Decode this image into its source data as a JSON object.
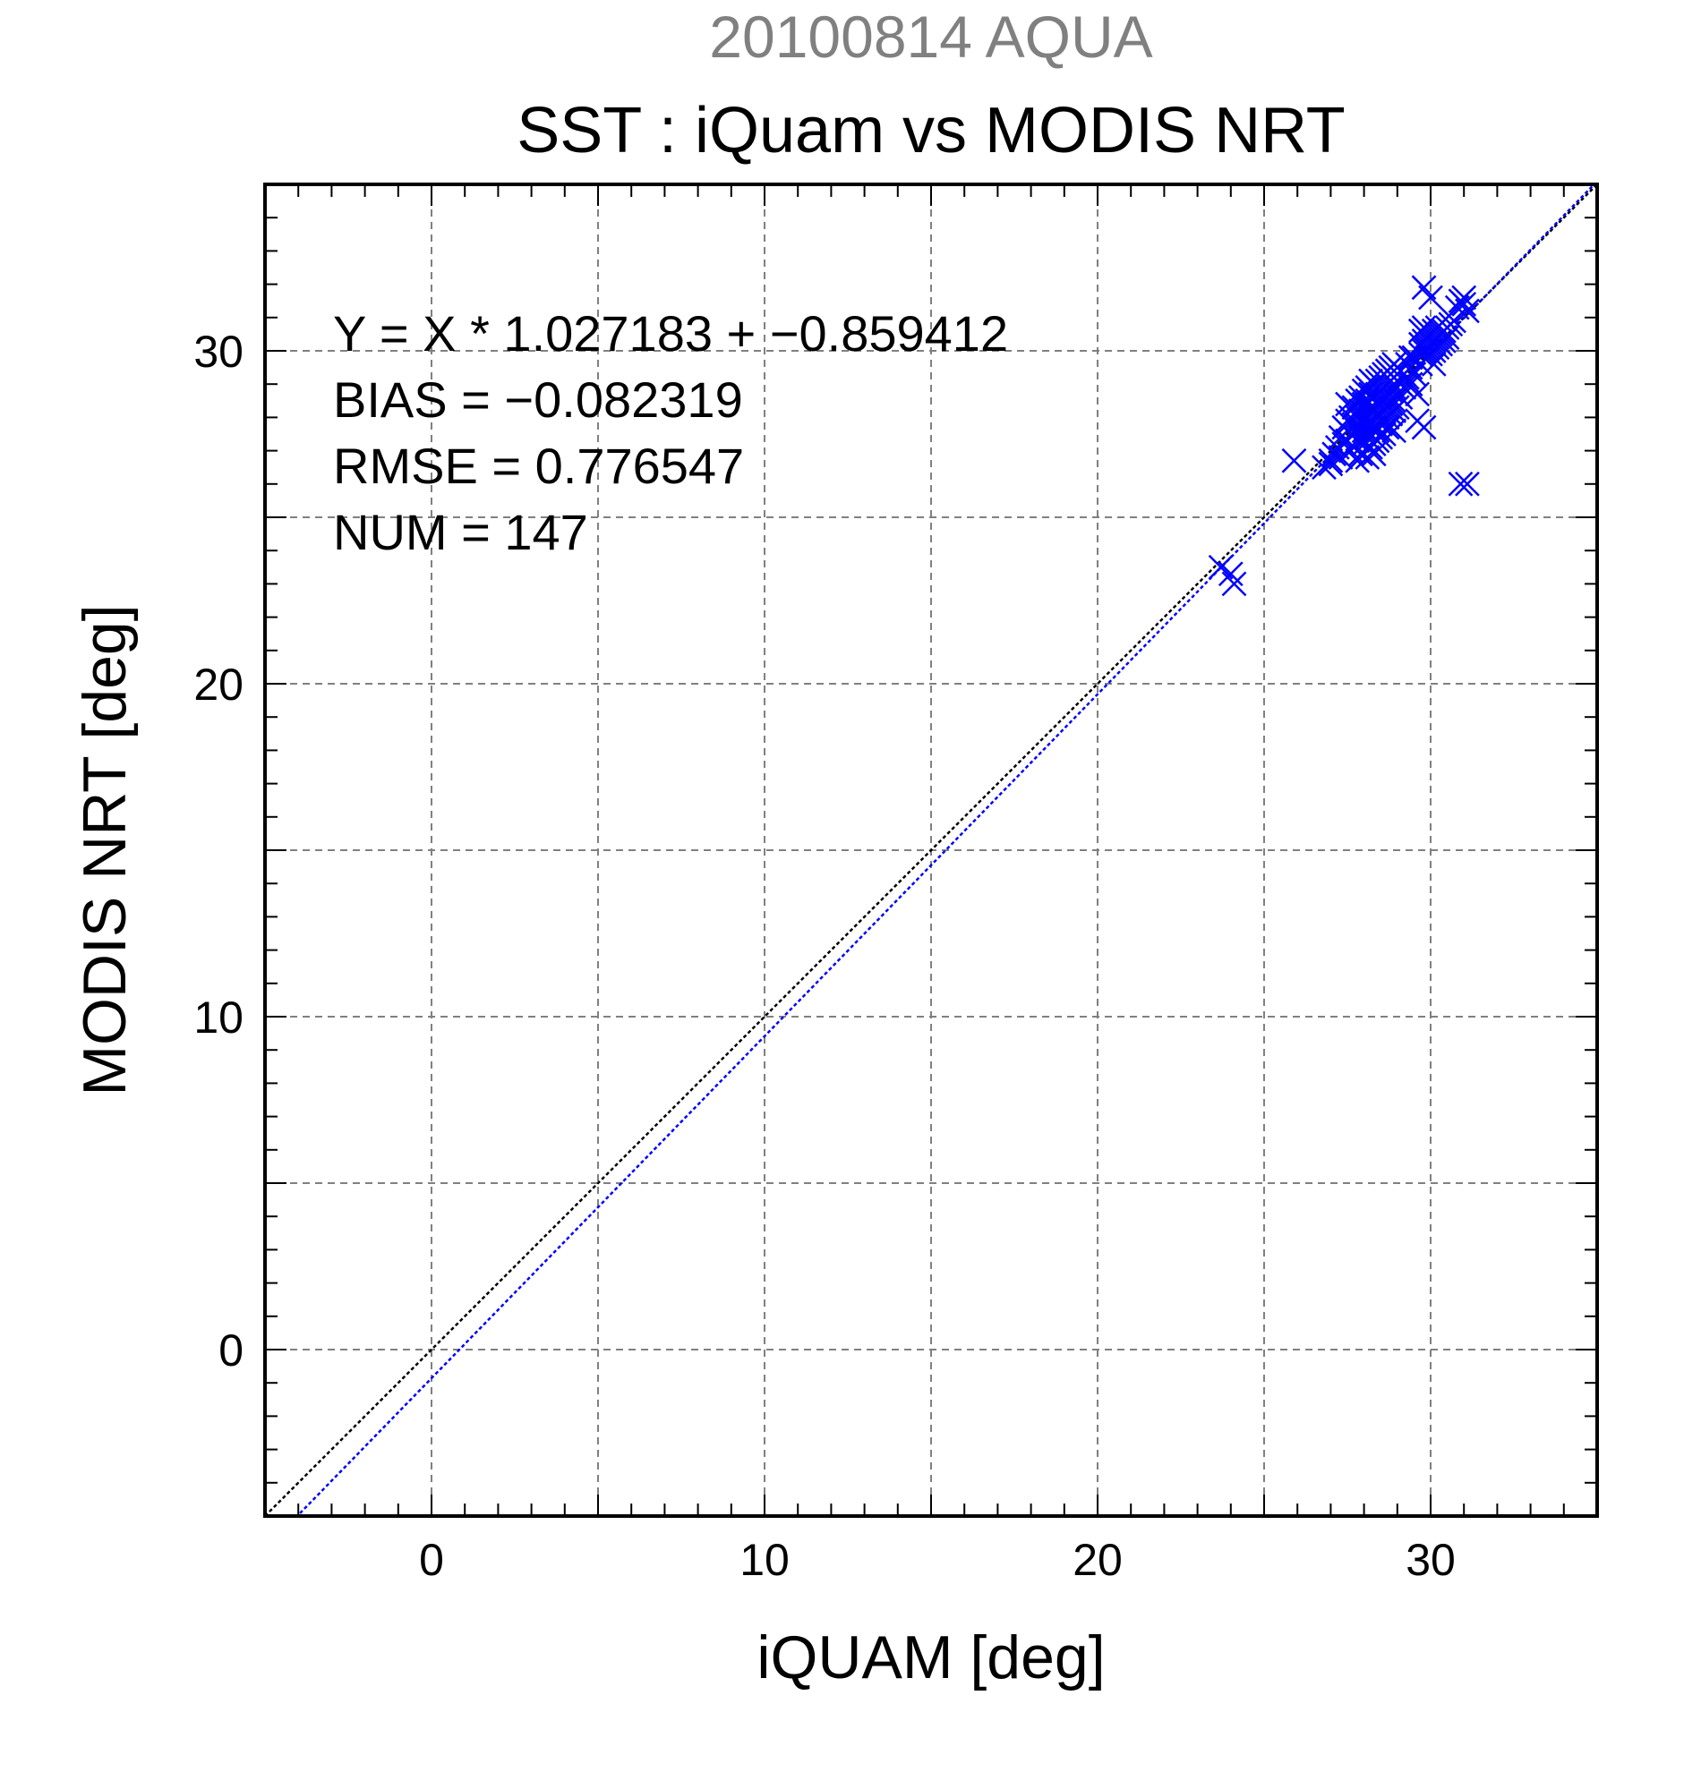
{
  "chart_data": {
    "type": "scatter",
    "title": "SST : iQuam vs MODIS NRT",
    "subtitle": "20100814 AQUA",
    "xlabel": "iQUAM [deg]",
    "ylabel": "MODIS NRT [deg]",
    "xlim": [
      -5,
      35
    ],
    "ylim": [
      -5,
      35
    ],
    "x_ticks": [
      "0",
      "10",
      "20",
      "30"
    ],
    "y_ticks": [
      "0",
      "10",
      "20",
      "30"
    ],
    "grid": true,
    "stats": {
      "equation": "Y = X * 1.027183 + −0.859412",
      "bias": "BIAS = −0.082319",
      "rmse": "RMSE = 0.776547",
      "num": "NUM = 147"
    },
    "fit_line": {
      "slope": 1.027183,
      "intercept": -0.859412
    },
    "identity_line": true,
    "series": [
      {
        "marker": "x",
        "points": [
          [
            23.7,
            23.5
          ],
          [
            24.0,
            23.3
          ],
          [
            24.1,
            23.0
          ],
          [
            25.9,
            26.7
          ],
          [
            26.8,
            26.5
          ],
          [
            27.0,
            26.7
          ],
          [
            27.1,
            26.9
          ],
          [
            27.2,
            27.1
          ],
          [
            27.3,
            27.4
          ],
          [
            27.3,
            26.8
          ],
          [
            27.4,
            27.7
          ],
          [
            27.4,
            27.2
          ],
          [
            27.5,
            27.9
          ],
          [
            27.5,
            27.3
          ],
          [
            27.6,
            28.0
          ],
          [
            27.6,
            27.5
          ],
          [
            27.6,
            27.0
          ],
          [
            27.7,
            28.3
          ],
          [
            27.7,
            27.8
          ],
          [
            27.7,
            27.1
          ],
          [
            27.8,
            28.5
          ],
          [
            27.8,
            28.0
          ],
          [
            27.8,
            27.6
          ],
          [
            27.8,
            27.3
          ],
          [
            27.9,
            28.6
          ],
          [
            27.9,
            28.2
          ],
          [
            27.9,
            27.9
          ],
          [
            27.9,
            27.4
          ],
          [
            27.9,
            26.9
          ],
          [
            28.0,
            28.8
          ],
          [
            28.0,
            28.4
          ],
          [
            28.0,
            28.0
          ],
          [
            28.0,
            27.6
          ],
          [
            28.0,
            27.2
          ],
          [
            28.1,
            28.9
          ],
          [
            28.1,
            28.5
          ],
          [
            28.1,
            28.1
          ],
          [
            28.1,
            27.8
          ],
          [
            28.1,
            27.4
          ],
          [
            28.1,
            26.8
          ],
          [
            28.2,
            28.7
          ],
          [
            28.2,
            28.3
          ],
          [
            28.2,
            27.9
          ],
          [
            28.2,
            27.5
          ],
          [
            28.2,
            27.1
          ],
          [
            28.3,
            29.0
          ],
          [
            28.3,
            28.6
          ],
          [
            28.3,
            28.2
          ],
          [
            28.3,
            27.7
          ],
          [
            28.3,
            27.2
          ],
          [
            28.3,
            26.9
          ],
          [
            28.4,
            29.1
          ],
          [
            28.4,
            28.7
          ],
          [
            28.4,
            28.4
          ],
          [
            28.4,
            28.0
          ],
          [
            28.4,
            27.6
          ],
          [
            28.4,
            27.3
          ],
          [
            28.5,
            29.2
          ],
          [
            28.5,
            28.8
          ],
          [
            28.5,
            28.5
          ],
          [
            28.5,
            28.1
          ],
          [
            28.5,
            27.8
          ],
          [
            28.5,
            27.4
          ],
          [
            28.6,
            29.3
          ],
          [
            28.6,
            28.9
          ],
          [
            28.6,
            28.6
          ],
          [
            28.6,
            28.2
          ],
          [
            28.6,
            27.9
          ],
          [
            28.6,
            27.5
          ],
          [
            28.7,
            29.4
          ],
          [
            28.7,
            29.0
          ],
          [
            28.7,
            28.7
          ],
          [
            28.7,
            28.3
          ],
          [
            28.7,
            28.0
          ],
          [
            28.7,
            27.7
          ],
          [
            28.8,
            29.5
          ],
          [
            28.8,
            29.1
          ],
          [
            28.8,
            28.8
          ],
          [
            28.8,
            28.4
          ],
          [
            28.8,
            28.1
          ],
          [
            28.9,
            29.6
          ],
          [
            28.9,
            29.2
          ],
          [
            28.9,
            28.9
          ],
          [
            28.9,
            28.5
          ],
          [
            28.9,
            28.2
          ],
          [
            29.0,
            29.5
          ],
          [
            29.0,
            29.1
          ],
          [
            29.0,
            28.7
          ],
          [
            29.0,
            28.3
          ],
          [
            29.1,
            29.4
          ],
          [
            29.1,
            29.0
          ],
          [
            29.1,
            28.6
          ],
          [
            29.2,
            29.3
          ],
          [
            29.2,
            28.9
          ],
          [
            29.3,
            29.6
          ],
          [
            29.3,
            29.2
          ],
          [
            29.4,
            29.5
          ],
          [
            29.4,
            29.0
          ],
          [
            29.5,
            29.8
          ],
          [
            29.5,
            29.3
          ],
          [
            29.6,
            28.7
          ],
          [
            29.6,
            27.9
          ],
          [
            29.7,
            29.9
          ],
          [
            29.7,
            30.2
          ],
          [
            29.7,
            30.6
          ],
          [
            29.7,
            29.6
          ],
          [
            29.8,
            30.0
          ],
          [
            29.8,
            30.3
          ],
          [
            29.8,
            30.7
          ],
          [
            29.8,
            31.9
          ],
          [
            29.8,
            27.7
          ],
          [
            29.9,
            30.1
          ],
          [
            29.9,
            30.4
          ],
          [
            29.9,
            29.8
          ],
          [
            29.9,
            30.0
          ],
          [
            30.0,
            30.2
          ],
          [
            30.0,
            30.5
          ],
          [
            30.0,
            31.6
          ],
          [
            30.0,
            29.9
          ],
          [
            30.1,
            30.3
          ],
          [
            30.1,
            30.6
          ],
          [
            30.1,
            30.0
          ],
          [
            30.1,
            29.6
          ],
          [
            30.2,
            30.4
          ],
          [
            30.2,
            30.7
          ],
          [
            30.2,
            30.1
          ],
          [
            30.3,
            30.5
          ],
          [
            30.3,
            30.2
          ],
          [
            30.4,
            30.6
          ],
          [
            30.4,
            30.3
          ],
          [
            30.5,
            30.7
          ],
          [
            30.5,
            30.4
          ],
          [
            30.6,
            30.8
          ],
          [
            30.7,
            30.9
          ],
          [
            30.8,
            31.3
          ],
          [
            30.9,
            31.5
          ],
          [
            30.9,
            26.0
          ],
          [
            31.0,
            31.4
          ],
          [
            31.0,
            31.6
          ],
          [
            31.1,
            31.2
          ],
          [
            31.1,
            26.0
          ],
          [
            27.0,
            26.6
          ],
          [
            27.5,
            28.4
          ],
          [
            28.2,
            29.1
          ],
          [
            29.4,
            29.8
          ],
          [
            28.9,
            27.6
          ],
          [
            27.8,
            26.7
          ]
        ]
      }
    ],
    "colors": {
      "subtitle": "#808080",
      "points": "#0000ff",
      "fit_line": "#0000ff",
      "identity_line": "#000000",
      "grid": "#808080",
      "frame": "#000000"
    }
  }
}
